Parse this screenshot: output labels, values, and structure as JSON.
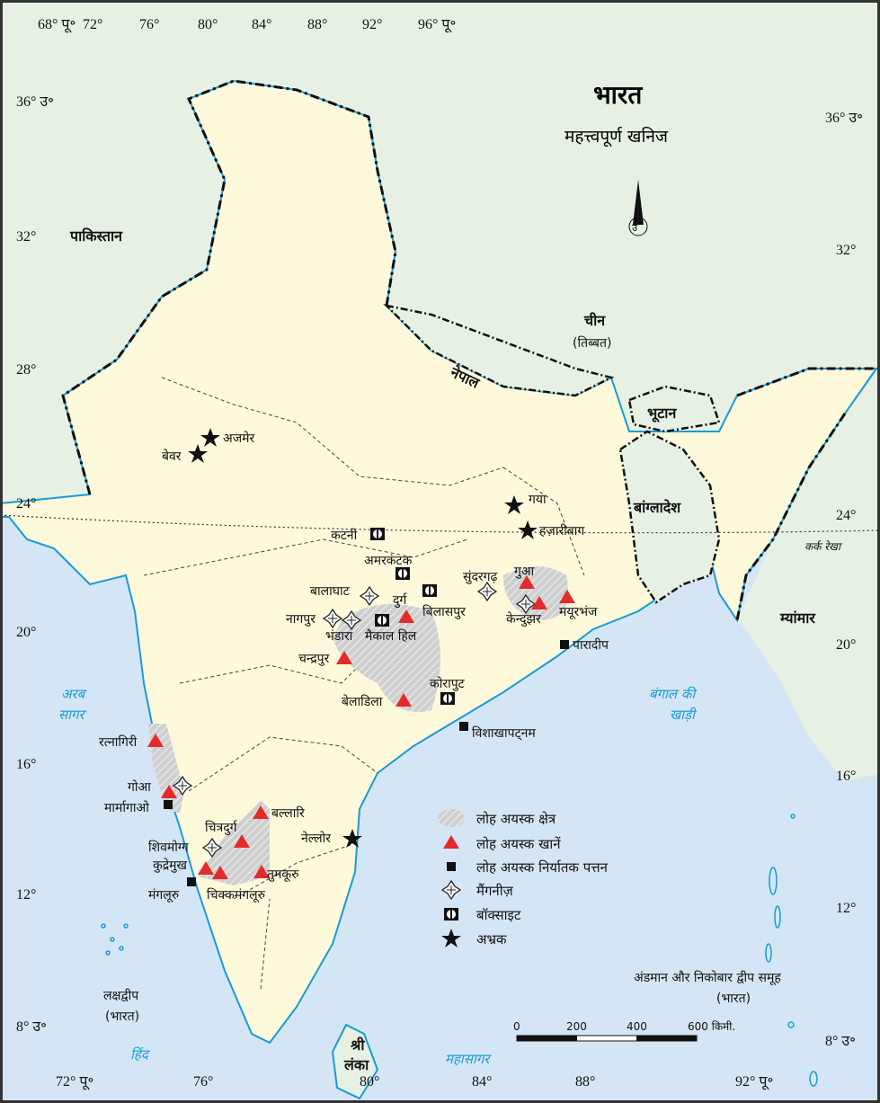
{
  "title": "भारत",
  "subtitle": "महत्त्वपूर्ण खनिज",
  "north_arrow": "उ",
  "colors": {
    "sea": "#d4e6f5",
    "india_land": "#fdf9da",
    "neighbor_land": "#e6f1e3",
    "coast": "#1a9ad6",
    "mine": "#e32b2b",
    "ore_area": "#c8c8c8"
  },
  "longitudes": [
    "68° पू॰",
    "72°",
    "76°",
    "80°",
    "84°",
    "88°",
    "92°",
    "96° पू॰"
  ],
  "bottom_longitudes": [
    "72° पू॰",
    "76°",
    "80°",
    "84°",
    "88°",
    "92° पू॰"
  ],
  "latitudes_left": [
    "36° उ॰",
    "32°",
    "28°",
    "24°",
    "20°",
    "16°",
    "12°",
    "8° उ॰"
  ],
  "latitudes_right": [
    "36° उ॰",
    "32°",
    "24°",
    "20°",
    "16°",
    "12°",
    "8° उ॰"
  ],
  "tropic": "कर्क रेखा",
  "countries": {
    "pakistan": "पाकिस्तान",
    "china": "चीन",
    "tibet": "(तिब्बत)",
    "nepal": "नेपाल",
    "bhutan": "भूटान",
    "bangladesh": "बांग्लादेश",
    "myanmar": "म्यांमार",
    "sri_lanka_1": "श्री",
    "sri_lanka_2": "लंका"
  },
  "seas": {
    "arabian_1": "अरब",
    "arabian_2": "सागर",
    "bay_1": "बंगाल की",
    "bay_2": "खाड़ी",
    "indian_1": "हिंद",
    "indian_2": "महासागर"
  },
  "islands": {
    "lakshadweep": "लक्षद्वीप",
    "lakshadweep_sub": "(भारत)",
    "andaman": "अंडमान और निकोबार द्वीप समूह",
    "andaman_sub": "(भारत)"
  },
  "places": {
    "ajmer": "अजमेर",
    "beawar": "बेवर",
    "gaya": "गया",
    "hazaribagh": "हज़ारीबाग",
    "katni": "कटनी",
    "amarkantak": "अमरकंटक",
    "balaghat": "बालाघाट",
    "durg": "दुर्ग",
    "bilaspur": "बिलासपुर",
    "sundargarh": "सुंदरगढ़",
    "gua": "गुआ",
    "mayurbhanj": "मयूरभंज",
    "keonjhar": "केन्दुझर",
    "nagpur": "नागपुर",
    "bhandara": "भंडारा",
    "maikal_hill": "मैकाल हिल",
    "chandrapur": "चन्द्रपुर",
    "paradip": "पारादीप",
    "koraput": "कोरापुट",
    "bailadila": "बेलाडिला",
    "visakhapatnam": "विशाखापट्नम",
    "ratnagiri": "रत्नागिरी",
    "goa": "गोआ",
    "marmagao": "मार्मागाओ",
    "bellary": "बल्लारि",
    "chitradurga": "चित्रदुर्ग",
    "shivamogga": "शिवमोग्ग",
    "nellore": "नेल्लोर",
    "kudremukh": "कुद्रेमुख",
    "tumakuru": "तुमकूरु",
    "mangaluru": "मंगलूरु",
    "chikkamagaluru": "चिक्कमंगलूरु"
  },
  "legend": [
    {
      "icon": "hatched-area",
      "label": "लोह अयस्क क्षेत्र"
    },
    {
      "icon": "red-triangle",
      "label": "लोह अयस्क खानें"
    },
    {
      "icon": "black-square",
      "label": "लोह अयस्क निर्यातक पत्तन"
    },
    {
      "icon": "manganese-diamond",
      "label": "मैंगनीज़"
    },
    {
      "icon": "bauxite-box",
      "label": "बॉक्साइट"
    },
    {
      "icon": "black-star",
      "label": "अभ्रक"
    }
  ],
  "scale": {
    "ticks": [
      "0",
      "200",
      "400",
      "600 किमी."
    ]
  }
}
